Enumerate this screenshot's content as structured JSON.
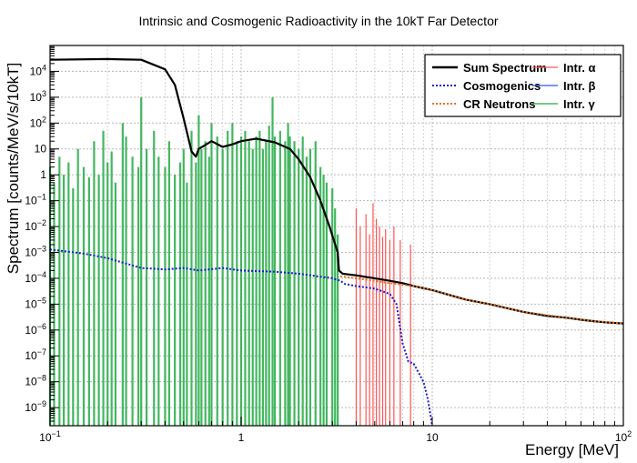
{
  "chart_data": {
    "type": "line",
    "title": "Intrinsic and Cosmogenic Radioactivity in the 10kT Far Detector",
    "xlabel": "Energy [MeV]",
    "ylabel": "Spectrum [counts/MeV/s/10kT]",
    "xscale": "log",
    "yscale": "log",
    "xlim": [
      0.1,
      100
    ],
    "ylim": [
      2e-10,
      100000.0
    ],
    "grid": true,
    "legend_placement": "top-right",
    "x_ticks": [
      {
        "v": 0.1,
        "b": "10",
        "e": "−1"
      },
      {
        "v": 1,
        "b": "1",
        "e": ""
      },
      {
        "v": 10,
        "b": "10",
        "e": ""
      },
      {
        "v": 100,
        "b": "10",
        "e": "2"
      }
    ],
    "y_ticks": [
      {
        "v": 1e-09,
        "b": "10",
        "e": "−9"
      },
      {
        "v": 1e-08,
        "b": "10",
        "e": "−8"
      },
      {
        "v": 1e-07,
        "b": "10",
        "e": "−7"
      },
      {
        "v": 1e-06,
        "b": "10",
        "e": "−6"
      },
      {
        "v": 1e-05,
        "b": "10",
        "e": "−5"
      },
      {
        "v": 0.0001,
        "b": "10",
        "e": "−4"
      },
      {
        "v": 0.001,
        "b": "10",
        "e": "−3"
      },
      {
        "v": 0.01,
        "b": "10",
        "e": "−2"
      },
      {
        "v": 0.1,
        "b": "10",
        "e": "−1"
      },
      {
        "v": 1,
        "b": "1",
        "e": ""
      },
      {
        "v": 10,
        "b": "10",
        "e": ""
      },
      {
        "v": 100,
        "b": "10",
        "e": "2"
      },
      {
        "v": 1000,
        "b": "10",
        "e": "3"
      },
      {
        "v": 10000,
        "b": "10",
        "e": "4"
      }
    ],
    "legend": [
      {
        "label": "Sum Spectrum",
        "color": "#000000",
        "style": "solid-thick"
      },
      {
        "label": "Intr. α",
        "color": "#ff5555",
        "style": "solid"
      },
      {
        "label": "Cosmogenics",
        "color": "#1a1acc",
        "style": "dotted"
      },
      {
        "label": "Intr. β",
        "color": "#3355ee",
        "style": "solid"
      },
      {
        "label": "CR Neutrons",
        "color": "#e07020",
        "style": "dotted"
      },
      {
        "label": "Intr. γ",
        "color": "#22aa44",
        "style": "solid"
      }
    ],
    "series": [
      {
        "label_ref": "Sum Spectrum",
        "color": "#000000",
        "x": [
          0.1,
          0.2,
          0.3,
          0.4,
          0.45,
          0.5,
          0.55,
          0.58,
          0.6,
          0.7,
          0.8,
          0.9,
          1.0,
          1.2,
          1.5,
          1.8,
          2.0,
          2.3,
          2.6,
          2.9,
          3.2,
          3.25,
          3.4,
          4.0,
          5.0,
          6.0,
          7.0,
          8.0,
          10,
          15,
          20,
          30,
          40,
          50,
          60,
          70,
          80,
          100
        ],
        "y": [
          28000,
          30000,
          28000,
          12000,
          3000,
          150,
          8,
          5,
          10,
          20,
          12,
          15,
          20,
          25,
          18,
          10,
          4,
          0.8,
          0.1,
          0.01,
          0.001,
          0.0002,
          0.00015,
          0.00013,
          0.0001,
          8e-05,
          6.5e-05,
          5e-05,
          3.5e-05,
          1.5e-05,
          1e-05,
          5e-06,
          3.5e-06,
          3e-06,
          2.5e-06,
          2.2e-06,
          2e-06,
          1.8e-06
        ]
      },
      {
        "label_ref": "Cosmogenics",
        "color": "#1a1acc",
        "x": [
          0.1,
          0.12,
          0.15,
          0.2,
          0.3,
          0.4,
          0.5,
          0.6,
          0.8,
          1.0,
          1.5,
          2.0,
          2.5,
          3.0,
          3.3,
          3.5,
          4.0,
          5.0,
          6.0,
          6.5,
          7.0,
          7.5,
          8.0,
          9.0,
          9.5,
          10
        ],
        "y": [
          0.0013,
          0.0011,
          0.0009,
          0.0006,
          0.00025,
          0.00022,
          0.00025,
          0.0002,
          0.00025,
          0.0002,
          0.00018,
          0.00015,
          0.00012,
          0.0001,
          8e-05,
          6e-05,
          5e-05,
          4e-05,
          2.5e-05,
          1e-05,
          3e-07,
          6e-08,
          5e-08,
          1e-08,
          2e-09,
          2e-10
        ]
      },
      {
        "label_ref": "CR Neutrons",
        "color": "#e07020",
        "x": [
          3.3,
          4.0,
          5.0,
          6.0,
          8.0,
          10,
          15,
          20,
          30,
          50,
          70,
          100
        ],
        "y": [
          0.00012,
          0.0001,
          8e-05,
          6.5e-05,
          5e-05,
          3.5e-05,
          1.5e-05,
          1e-05,
          5e-06,
          3e-06,
          2.2e-06,
          1.8e-06
        ]
      }
    ],
    "gamma_lines": {
      "label_ref": "Intr. γ",
      "color": "#22aa44",
      "x": [
        0.1,
        0.105,
        0.112,
        0.118,
        0.125,
        0.132,
        0.14,
        0.15,
        0.16,
        0.17,
        0.18,
        0.19,
        0.2,
        0.21,
        0.22,
        0.24,
        0.25,
        0.27,
        0.29,
        0.3,
        0.32,
        0.35,
        0.37,
        0.4,
        0.42,
        0.45,
        0.48,
        0.5,
        0.52,
        0.55,
        0.58,
        0.6,
        0.62,
        0.65,
        0.68,
        0.7,
        0.75,
        0.8,
        0.85,
        0.9,
        0.95,
        1.0,
        1.05,
        1.1,
        1.15,
        1.2,
        1.25,
        1.3,
        1.35,
        1.4,
        1.46,
        1.5,
        1.6,
        1.7,
        1.76,
        1.8,
        1.9,
        2.0,
        2.1,
        2.2,
        2.3,
        2.45,
        2.6,
        2.7,
        2.8,
        3.0,
        3.1,
        3.2
      ],
      "y": [
        2,
        0.5,
        5,
        1,
        3,
        0.3,
        10,
        2,
        0.8,
        20,
        1,
        50,
        3,
        8,
        0.5,
        100,
        30,
        5,
        2,
        1000,
        10,
        50,
        5,
        2,
        20,
        1,
        3,
        10,
        0.5,
        50,
        3,
        200,
        10,
        20,
        5,
        100,
        30,
        10,
        50,
        100,
        20,
        30,
        50,
        20,
        10,
        30,
        50,
        10,
        20,
        80,
        1000,
        30,
        50,
        20,
        100,
        30,
        20,
        10,
        30,
        5,
        10,
        20,
        2,
        1,
        0.5,
        0.3,
        0.05,
        0.005
      ]
    },
    "alpha_lines": {
      "label_ref": "Intr. α",
      "color": "#ff5555",
      "x": [
        4.0,
        4.2,
        4.5,
        4.7,
        4.9,
        5.1,
        5.3,
        5.5,
        5.7,
        6.0,
        6.3,
        6.8,
        7.7
      ],
      "y": [
        0.05,
        0.01,
        0.03,
        0.005,
        0.08,
        0.02,
        0.01,
        0.004,
        0.008,
        0.003,
        0.01,
        0.003,
        0.002
      ]
    }
  }
}
